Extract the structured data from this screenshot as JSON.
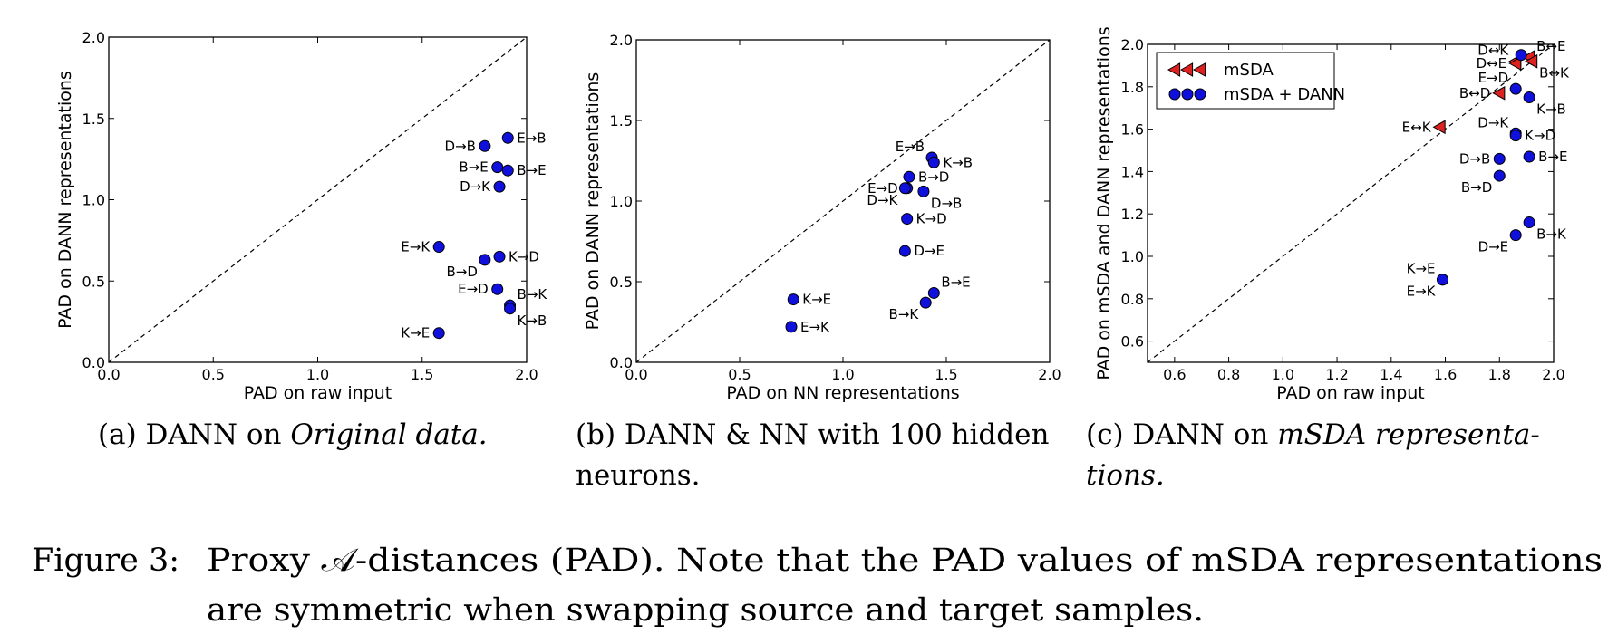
{
  "figure_caption": {
    "label": "Figure 3:",
    "line1": "Proxy 𝒜-distances (PAD). Note that the PAD values of mSDA representations",
    "line2": "are symmetric when swapping source and target samples."
  },
  "colors": {
    "dann": "#1010dd",
    "msda": "#dd2020",
    "edge": "#000000"
  },
  "chart_data": [
    {
      "type": "scatter",
      "caption_pre": "(a) DANN on ",
      "caption_em": "Original data.",
      "caption_line2": "",
      "xlabel": "PAD on raw input",
      "ylabel": "PAD on DANN representations",
      "xlim": [
        0,
        2
      ],
      "ylim": [
        0,
        2
      ],
      "xticks": [
        "0.0",
        "0.5",
        "1.0",
        "1.5",
        "2.0"
      ],
      "yticks": [
        "0.0",
        "0.5",
        "1.0",
        "1.5",
        "2.0"
      ],
      "diagonal": true,
      "series": [
        {
          "marker": "circle",
          "points": [
            {
              "x": 1.91,
              "y": 1.38,
              "label": "E→B",
              "pos": "right"
            },
            {
              "x": 1.8,
              "y": 1.33,
              "label": "D→B",
              "pos": "left"
            },
            {
              "x": 1.86,
              "y": 1.2,
              "label": "B→E",
              "pos": "left"
            },
            {
              "x": 1.91,
              "y": 1.18,
              "label": "B→E",
              "pos": "right"
            },
            {
              "x": 1.87,
              "y": 1.08,
              "label": "D→K",
              "pos": "left"
            },
            {
              "x": 1.58,
              "y": 0.71,
              "label": "E→K",
              "pos": "left"
            },
            {
              "x": 1.87,
              "y": 0.65,
              "label": "K→D",
              "pos": "right"
            },
            {
              "x": 1.8,
              "y": 0.63,
              "label": "B→D",
              "pos": "bottom-left"
            },
            {
              "x": 1.86,
              "y": 0.45,
              "label": "E→D",
              "pos": "left"
            },
            {
              "x": 1.92,
              "y": 0.35,
              "label": "B→K",
              "pos": "top-right"
            },
            {
              "x": 1.92,
              "y": 0.33,
              "label": "K→B",
              "pos": "bottom-right"
            },
            {
              "x": 1.58,
              "y": 0.18,
              "label": "K→E",
              "pos": "left"
            }
          ]
        }
      ]
    },
    {
      "type": "scatter",
      "caption_pre": "(b) DANN & NN with 100 hidden",
      "caption_em": "",
      "caption_line2": "neurons.",
      "xlabel": "PAD on NN representations",
      "ylabel": "PAD on DANN representations",
      "xlim": [
        0,
        2
      ],
      "ylim": [
        0,
        2
      ],
      "xticks": [
        "0.0",
        "0.5",
        "1.0",
        "1.5",
        "2.0"
      ],
      "yticks": [
        "0.0",
        "0.5",
        "1.0",
        "1.5",
        "2.0"
      ],
      "diagonal": true,
      "series": [
        {
          "marker": "circle",
          "points": [
            {
              "x": 1.43,
              "y": 1.27,
              "label": "E→B",
              "pos": "top-left"
            },
            {
              "x": 1.44,
              "y": 1.24,
              "label": "K→B",
              "pos": "right"
            },
            {
              "x": 1.32,
              "y": 1.15,
              "label": "B→D",
              "pos": "right"
            },
            {
              "x": 1.31,
              "y": 1.08,
              "label": "E→D",
              "pos": "left"
            },
            {
              "x": 1.39,
              "y": 1.06,
              "label": "D→B",
              "pos": "bottom-right"
            },
            {
              "x": 1.3,
              "y": 1.08,
              "label": "D→K",
              "pos": "bottom-left"
            },
            {
              "x": 1.31,
              "y": 0.89,
              "label": "K→D",
              "pos": "right"
            },
            {
              "x": 1.3,
              "y": 0.69,
              "label": "D→E",
              "pos": "right"
            },
            {
              "x": 1.44,
              "y": 0.43,
              "label": "B→E",
              "pos": "top-right"
            },
            {
              "x": 1.4,
              "y": 0.37,
              "label": "B→K",
              "pos": "bottom-left"
            },
            {
              "x": 0.76,
              "y": 0.39,
              "label": "K→E",
              "pos": "right"
            },
            {
              "x": 0.75,
              "y": 0.22,
              "label": "E→K",
              "pos": "right"
            }
          ]
        }
      ]
    },
    {
      "type": "scatter",
      "caption_pre": "(c) DANN on ",
      "caption_em": "mSDA representa-",
      "caption_line2": "tions.",
      "xlabel": "PAD on raw input",
      "ylabel": "PAD on mSDA and DANN representations",
      "xlim": [
        0.5,
        2.0
      ],
      "ylim": [
        0.5,
        2.0
      ],
      "xticks": [
        "0.6",
        "0.8",
        "1.0",
        "1.2",
        "1.4",
        "1.6",
        "1.8",
        "2.0"
      ],
      "yticks": [
        "0.6",
        "0.8",
        "1.0",
        "1.2",
        "1.4",
        "1.6",
        "1.8",
        "2.0"
      ],
      "diagonal": true,
      "legend": "top-left",
      "series": [
        {
          "name": "mSDA",
          "marker": "triangle",
          "points": [
            {
              "x": 1.91,
              "y": 1.94,
              "label": "B↔E",
              "pos": "top-right"
            },
            {
              "x": 1.86,
              "y": 1.92,
              "label": "D↔K",
              "pos": "top-left"
            },
            {
              "x": 1.92,
              "y": 1.92,
              "label": "B↔K",
              "pos": "bottom-right"
            },
            {
              "x": 1.86,
              "y": 1.91,
              "label": "D↔E",
              "pos": "left"
            },
            {
              "x": 1.8,
              "y": 1.77,
              "label": "B↔D",
              "pos": "left"
            },
            {
              "x": 1.58,
              "y": 1.61,
              "label": "E↔K",
              "pos": "left"
            }
          ]
        },
        {
          "name": "mSDA + DANN",
          "marker": "circle",
          "points": [
            {
              "x": 1.88,
              "y": 1.95,
              "label": "",
              "pos": "none"
            },
            {
              "x": 1.86,
              "y": 1.79,
              "label": "E→D",
              "pos": "top-left"
            },
            {
              "x": 1.91,
              "y": 1.75,
              "label": "K→B",
              "pos": "bottom-right"
            },
            {
              "x": 1.86,
              "y": 1.58,
              "label": "D→K",
              "pos": "top-left"
            },
            {
              "x": 1.86,
              "y": 1.57,
              "label": "K→D",
              "pos": "right"
            },
            {
              "x": 1.8,
              "y": 1.46,
              "label": "D→B",
              "pos": "left"
            },
            {
              "x": 1.91,
              "y": 1.47,
              "label": "B→E",
              "pos": "right"
            },
            {
              "x": 1.8,
              "y": 1.38,
              "label": "B→D",
              "pos": "bottom-left"
            },
            {
              "x": 1.91,
              "y": 1.16,
              "label": "B→K",
              "pos": "bottom-right"
            },
            {
              "x": 1.86,
              "y": 1.1,
              "label": "D→E",
              "pos": "bottom-left"
            },
            {
              "x": 1.59,
              "y": 0.89,
              "label": "K→E",
              "pos": "top-left"
            },
            {
              "x": 1.59,
              "y": 0.89,
              "label": "E→K",
              "pos": "bottom-left"
            }
          ]
        }
      ]
    }
  ]
}
